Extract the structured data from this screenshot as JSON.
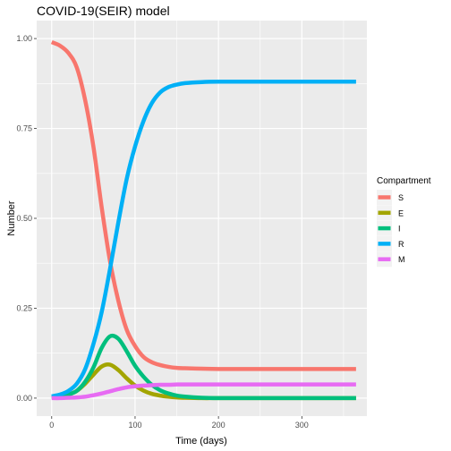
{
  "chart_data": {
    "type": "line",
    "title": "COVID-19(SEIR) model",
    "xlabel": "Time (days)",
    "ylabel": "Number",
    "xlim": [
      -18,
      378
    ],
    "ylim": [
      -0.05,
      1.05
    ],
    "x_ticks": [
      0,
      100,
      200,
      300
    ],
    "x_tick_labels": [
      "0",
      "100",
      "200",
      "300"
    ],
    "y_ticks": [
      0,
      0.25,
      0.5,
      0.75,
      1.0
    ],
    "y_tick_labels": [
      "0.00",
      "0.25",
      "0.50",
      "0.75",
      "1.00"
    ],
    "grid": true,
    "legend": {
      "title": "Compartment",
      "placement": "right"
    },
    "series": [
      {
        "name": "S",
        "color": "#F8766D",
        "x": [
          0,
          10,
          20,
          30,
          40,
          50,
          60,
          70,
          80,
          90,
          100,
          110,
          120,
          130,
          140,
          150,
          160,
          180,
          200,
          250,
          300,
          365
        ],
        "y": [
          0.99,
          0.98,
          0.96,
          0.92,
          0.83,
          0.7,
          0.53,
          0.38,
          0.27,
          0.19,
          0.145,
          0.115,
          0.1,
          0.092,
          0.087,
          0.084,
          0.083,
          0.082,
          0.081,
          0.081,
          0.081,
          0.081
        ]
      },
      {
        "name": "E",
        "color": "#A3A500",
        "x": [
          0,
          10,
          20,
          30,
          40,
          50,
          60,
          70,
          80,
          90,
          100,
          110,
          120,
          130,
          140,
          150,
          160,
          180,
          200,
          250,
          300,
          365
        ],
        "y": [
          0.003,
          0.005,
          0.01,
          0.02,
          0.04,
          0.065,
          0.088,
          0.093,
          0.078,
          0.055,
          0.035,
          0.021,
          0.012,
          0.007,
          0.004,
          0.002,
          0.001,
          0.0,
          0.0,
          0.0,
          0.0,
          0.0
        ]
      },
      {
        "name": "I",
        "color": "#00BF7D",
        "x": [
          0,
          10,
          20,
          30,
          40,
          50,
          60,
          70,
          80,
          90,
          100,
          110,
          120,
          130,
          140,
          150,
          160,
          180,
          200,
          250,
          300,
          365
        ],
        "y": [
          0.003,
          0.005,
          0.01,
          0.02,
          0.045,
          0.085,
          0.14,
          0.172,
          0.165,
          0.13,
          0.09,
          0.06,
          0.037,
          0.022,
          0.013,
          0.007,
          0.004,
          0.001,
          0.0,
          0.0,
          0.0,
          0.0
        ]
      },
      {
        "name": "R",
        "color": "#00B0F6",
        "x": [
          0,
          10,
          20,
          30,
          40,
          50,
          60,
          70,
          80,
          90,
          100,
          110,
          120,
          130,
          140,
          150,
          160,
          180,
          200,
          250,
          300,
          365
        ],
        "y": [
          0.005,
          0.01,
          0.02,
          0.04,
          0.08,
          0.15,
          0.24,
          0.36,
          0.49,
          0.61,
          0.7,
          0.77,
          0.82,
          0.85,
          0.865,
          0.872,
          0.876,
          0.879,
          0.88,
          0.88,
          0.88,
          0.88
        ]
      },
      {
        "name": "M",
        "color": "#E76BF3",
        "x": [
          0,
          10,
          20,
          30,
          40,
          50,
          60,
          70,
          80,
          90,
          100,
          110,
          120,
          130,
          140,
          150,
          160,
          180,
          200,
          250,
          300,
          365
        ],
        "y": [
          0.0,
          0.0,
          0.001,
          0.002,
          0.004,
          0.008,
          0.013,
          0.019,
          0.025,
          0.03,
          0.033,
          0.035,
          0.036,
          0.037,
          0.037,
          0.038,
          0.038,
          0.038,
          0.038,
          0.038,
          0.038,
          0.038
        ]
      }
    ]
  }
}
